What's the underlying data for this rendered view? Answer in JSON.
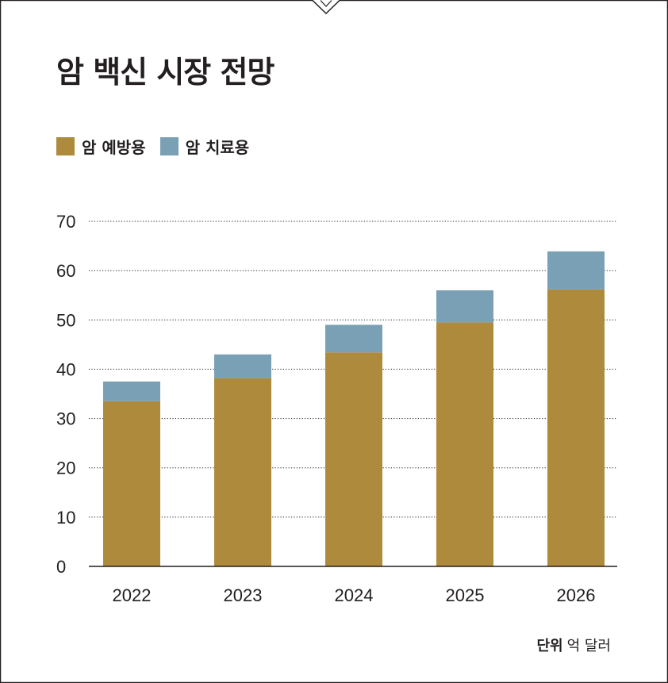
{
  "title": "암 백신 시장 전망",
  "unit": {
    "label": "단위",
    "value": "억 달러"
  },
  "colors": {
    "prevention": "#ae8a3c",
    "treatment": "#7aa0b5",
    "frame": "#231f20",
    "grid": "#231f20"
  },
  "legend": [
    {
      "label": "암 예방용",
      "color": "#ae8a3c"
    },
    {
      "label": "암 치료용",
      "color": "#7aa0b5"
    }
  ],
  "chart_data": {
    "type": "bar",
    "stacked": true,
    "title": "암 백신 시장 전망",
    "categories": [
      "2022",
      "2023",
      "2024",
      "2025",
      "2026"
    ],
    "series": [
      {
        "name": "암 예방용",
        "values": [
          33.5,
          38.2,
          43.4,
          49.5,
          56.2
        ]
      },
      {
        "name": "암 치료용",
        "values": [
          4.0,
          4.8,
          5.6,
          6.5,
          7.7
        ]
      }
    ],
    "ylim": [
      0,
      70
    ],
    "yticks": [
      0,
      10,
      20,
      30,
      40,
      50,
      60,
      70
    ],
    "grid": true,
    "legend_position": "top-left"
  }
}
